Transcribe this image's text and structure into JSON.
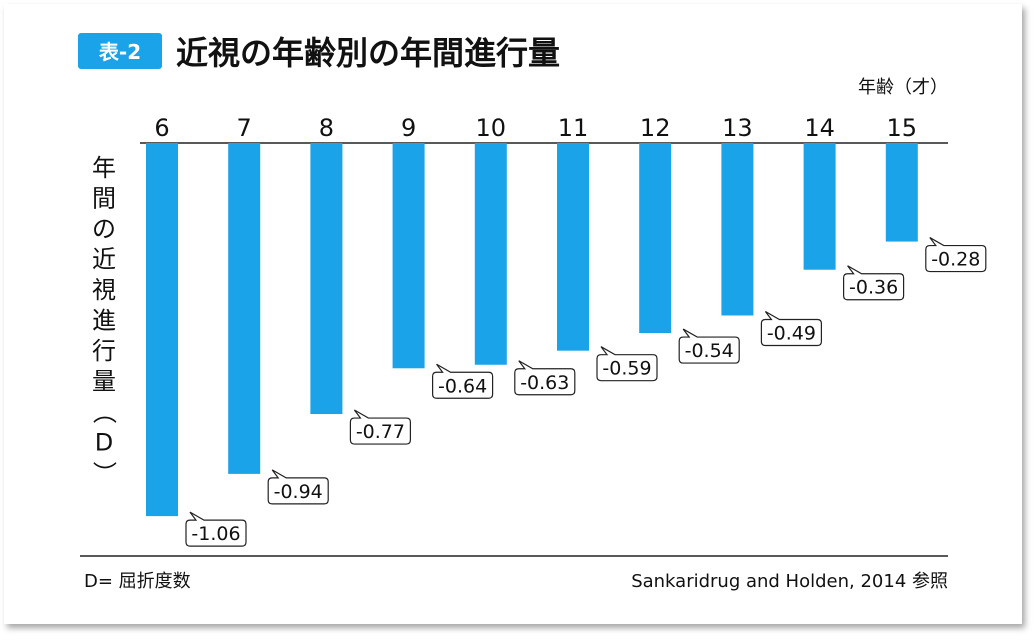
{
  "header": {
    "badge": "表-2",
    "title": "近視の年齢別の年間進行量"
  },
  "colors": {
    "bar": "#1aa3e8",
    "badge": "#1aa3e8",
    "text": "#111111"
  },
  "chart_data": {
    "type": "bar",
    "orientation": "vertical-negative",
    "title": "近視の年齢別の年間進行量",
    "xlabel": "年齢（才）",
    "ylabel": "年間の近視進行量（D）",
    "categories": [
      "6",
      "7",
      "8",
      "9",
      "10",
      "11",
      "12",
      "13",
      "14",
      "15"
    ],
    "values": [
      -1.06,
      -0.94,
      -0.77,
      -0.64,
      -0.63,
      -0.59,
      -0.54,
      -0.49,
      -0.36,
      -0.28
    ],
    "value_labels": [
      "-1.06",
      "-0.94",
      "-0.77",
      "-0.64",
      "-0.63",
      "-0.59",
      "-0.54",
      "-0.49",
      "-0.36",
      "-0.28"
    ],
    "x_axis_position": "top",
    "grid": false,
    "legend": "none"
  },
  "footer": {
    "note": "D= 屈折度数",
    "source": "Sankaridrug and Holden, 2014 参照"
  }
}
